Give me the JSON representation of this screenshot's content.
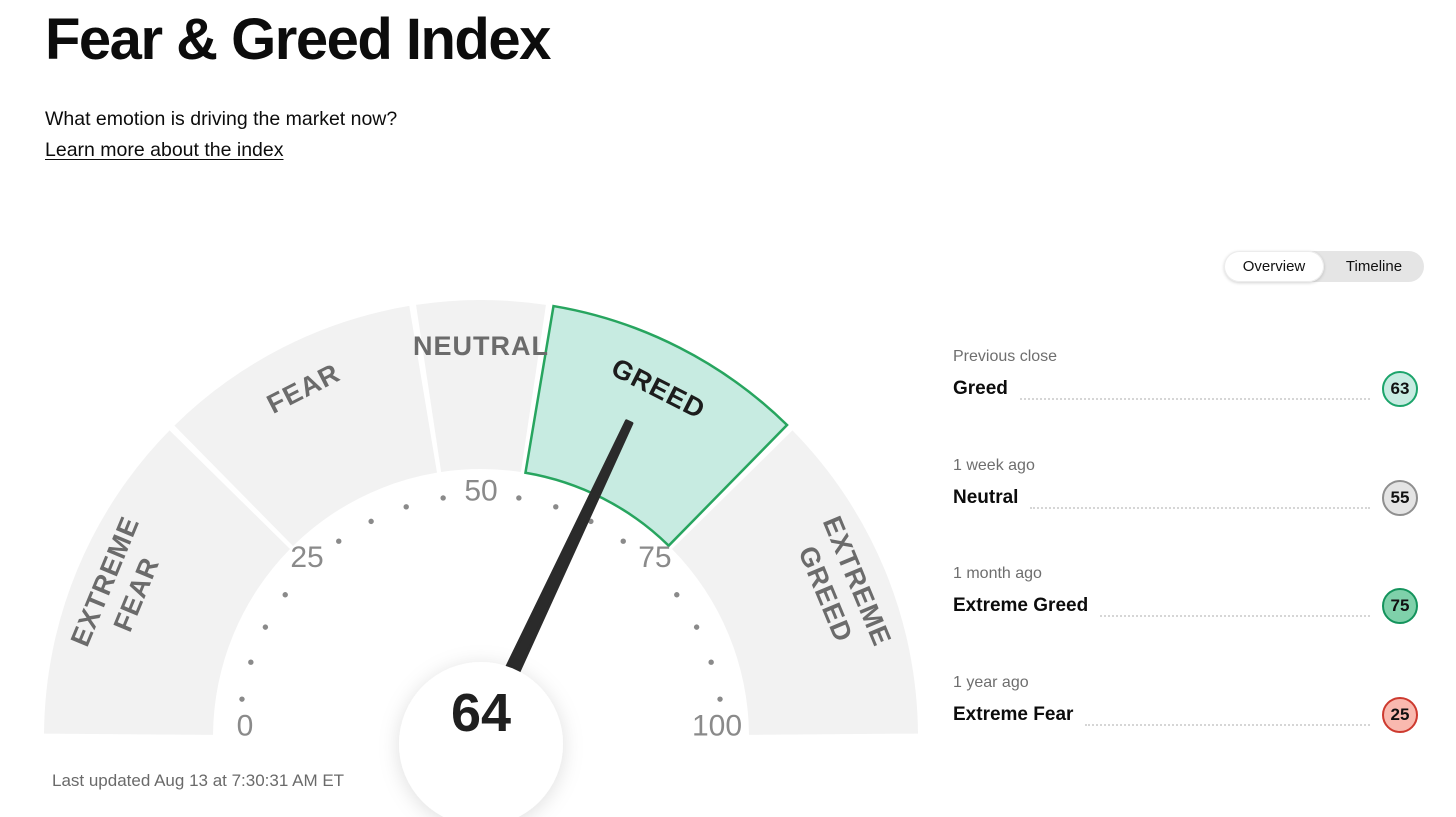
{
  "header": {
    "title": "Fear & Greed Index",
    "subtitle": "What emotion is driving the market now?",
    "link": "Learn more about the index"
  },
  "toggle": {
    "options": [
      "Overview",
      "Timeline"
    ],
    "selected": "Overview"
  },
  "chart_data": {
    "type": "gauge",
    "title": "Fear & Greed Index",
    "value": 64,
    "value_label": "64",
    "min": 0,
    "max": 100,
    "axis_ticks": [
      0,
      25,
      50,
      75,
      100
    ],
    "dot_step": 5,
    "segments": [
      {
        "label": "EXTREME FEAR",
        "lines": [
          "EXTREME",
          "FEAR"
        ],
        "from": 0,
        "to": 25,
        "active": false
      },
      {
        "label": "FEAR",
        "lines": [
          "FEAR"
        ],
        "from": 25,
        "to": 45,
        "active": false
      },
      {
        "label": "NEUTRAL",
        "lines": [
          "NEUTRAL"
        ],
        "from": 45,
        "to": 55,
        "active": false
      },
      {
        "label": "GREED",
        "lines": [
          "GREED"
        ],
        "from": 55,
        "to": 75,
        "active": true
      },
      {
        "label": "EXTREME GREED",
        "lines": [
          "EXTREME",
          "GREED"
        ],
        "from": 75,
        "to": 100,
        "active": false
      }
    ],
    "colors": {
      "segment_fill": "#f2f2f2",
      "active_fill": "#c7ebe1",
      "active_stroke": "#27a55f",
      "label": "#6b6b6b",
      "active_label": "#1c1c1c",
      "axis_number": "#8a8a8a",
      "tick_dot": "#8a8a8a",
      "needle": "#2b2b2b",
      "value_text": "#1f1f1f"
    }
  },
  "last_updated": "Last updated Aug 13 at 7:30:31 AM ET",
  "history": {
    "rows": [
      {
        "period": "Previous close",
        "label": "Greed",
        "value": 63,
        "fill": "#c7ebe1",
        "border": "#1ca46b"
      },
      {
        "period": "1 week ago",
        "label": "Neutral",
        "value": 55,
        "fill": "#e4e4e4",
        "border": "#8f8f8f"
      },
      {
        "period": "1 month ago",
        "label": "Extreme Greed",
        "value": 75,
        "fill": "#7fd1aa",
        "border": "#14935c"
      },
      {
        "period": "1 year ago",
        "label": "Extreme Fear",
        "value": 25,
        "fill": "#f9b9af",
        "border": "#cd3a2f"
      }
    ]
  }
}
